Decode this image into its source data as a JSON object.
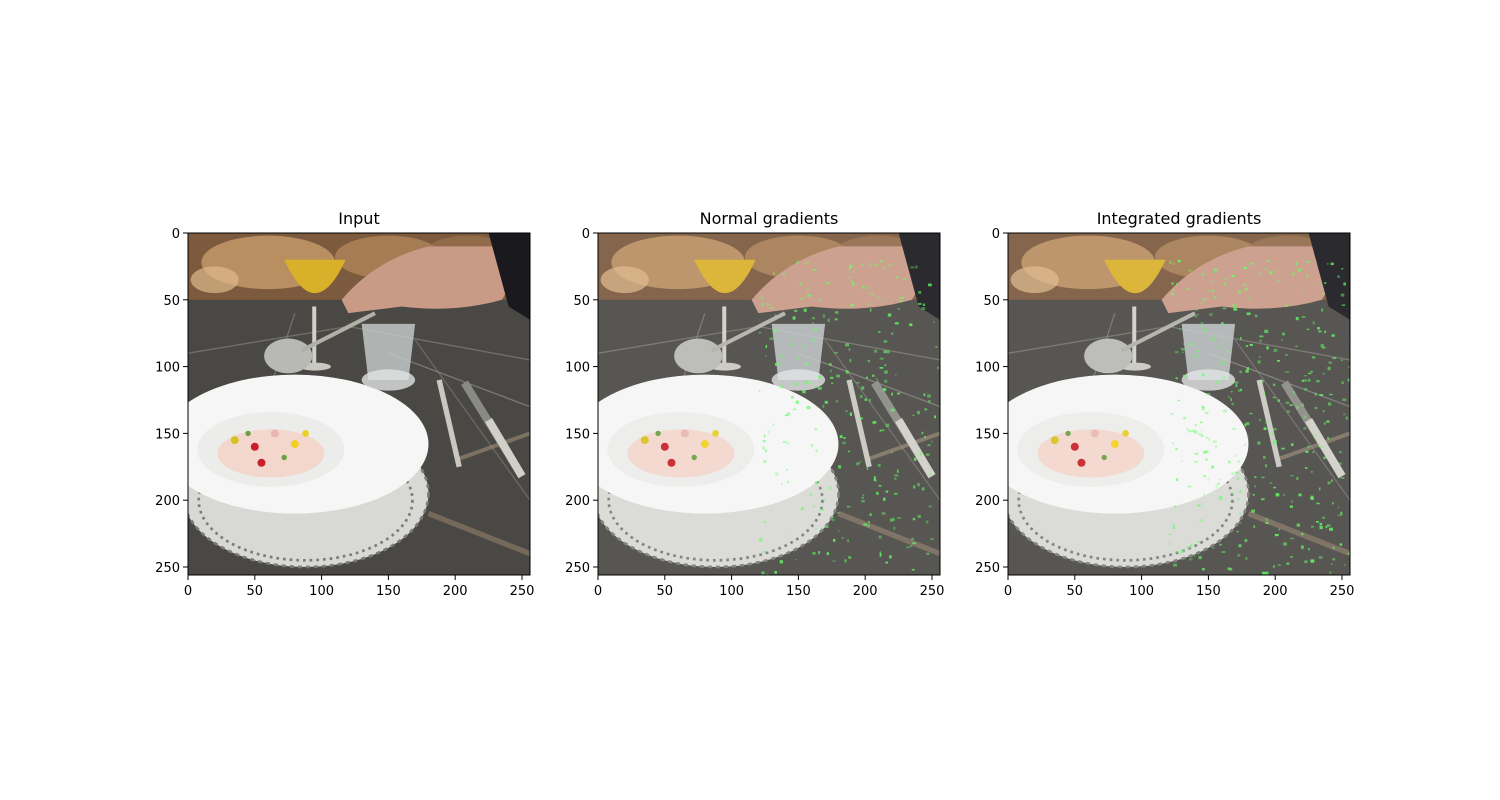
{
  "figure": {
    "panels": [
      {
        "title": "Input",
        "overlay": "none"
      },
      {
        "title": "Normal gradients",
        "overlay": "normal"
      },
      {
        "title": "Integrated gradients",
        "overlay": "integrated"
      }
    ],
    "x_ticks": [
      "0",
      "50",
      "100",
      "150",
      "200",
      "250"
    ],
    "y_ticks": [
      "0",
      "50",
      "100",
      "150",
      "200",
      "250"
    ],
    "axis_range": [
      0,
      256
    ],
    "image_content": "plated dish with wine glass, water glass, spoon held by hand, fork and knife on dark marble table",
    "overlay_color": "#66ff66",
    "colors": {
      "plate": "#f6f6f6",
      "table": "#4a4844",
      "wall": "#8a6a4a",
      "wine": "#d8b02a",
      "skin": "#c99a86"
    }
  }
}
